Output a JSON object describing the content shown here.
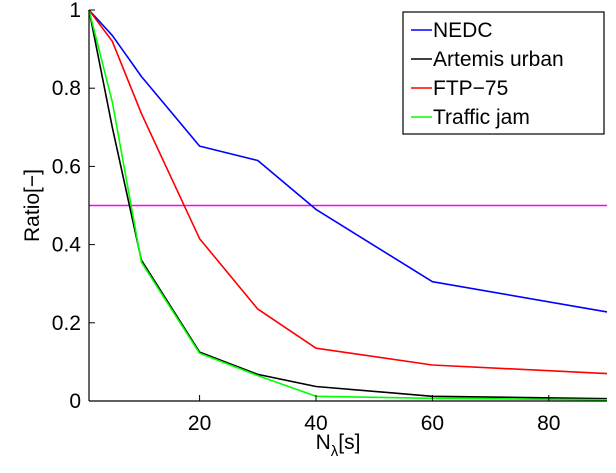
{
  "chart_data": {
    "type": "line",
    "xlabel": "N",
    "xlabel_subscript": "λ",
    "xlabel_unit": "[s]",
    "ylabel": "Ratio[−]",
    "xlim": [
      1,
      90
    ],
    "ylim": [
      0,
      1
    ],
    "xticks": [
      20,
      40,
      60,
      80
    ],
    "yticks": [
      0,
      0.2,
      0.4,
      0.6,
      0.8,
      1
    ],
    "ytick_labels": [
      "0",
      "0.2",
      "0.4",
      "0.6",
      "0.8",
      "1"
    ],
    "grid": false,
    "legend_position": "top-right",
    "series": [
      {
        "name": "NEDC",
        "color": "#0000ff",
        "x": [
          1,
          5,
          10,
          20,
          30,
          40,
          60,
          90
        ],
        "y": [
          1.0,
          0.935,
          0.83,
          0.652,
          0.615,
          0.49,
          0.305,
          0.228
        ]
      },
      {
        "name": "Artemis urban",
        "color": "#000000",
        "x": [
          1,
          5,
          10,
          20,
          30,
          40,
          60,
          90
        ],
        "y": [
          1.0,
          0.7,
          0.36,
          0.125,
          0.068,
          0.037,
          0.012,
          0.006
        ]
      },
      {
        "name": "FTP−75",
        "color": "#ff0000",
        "x": [
          1,
          5,
          10,
          20,
          30,
          40,
          60,
          90
        ],
        "y": [
          1.0,
          0.92,
          0.735,
          0.415,
          0.235,
          0.135,
          0.092,
          0.07
        ]
      },
      {
        "name": "Traffic jam",
        "color": "#00ff00",
        "x": [
          1,
          5,
          10,
          20,
          30,
          40,
          60,
          90
        ],
        "y": [
          1.0,
          0.765,
          0.355,
          0.122,
          0.065,
          0.012,
          0.007,
          0.003
        ]
      }
    ],
    "reference_line": {
      "y": 0.5,
      "color": "#ff00ff"
    }
  }
}
